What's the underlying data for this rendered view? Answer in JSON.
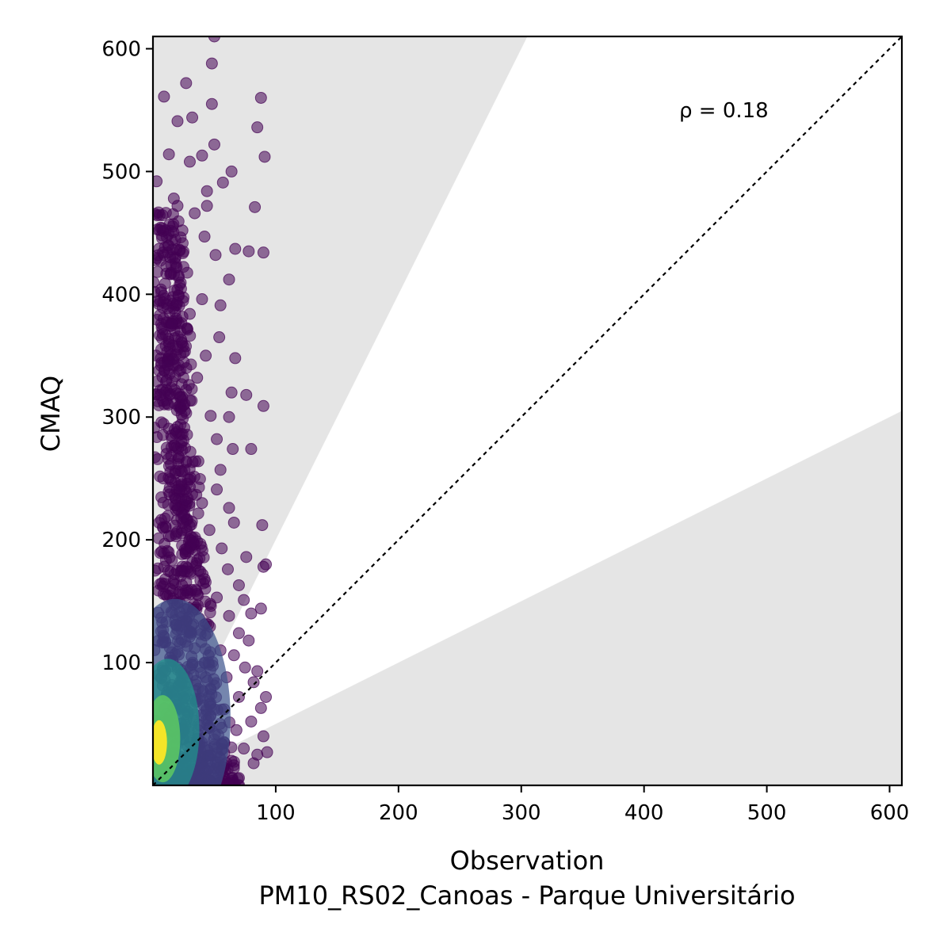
{
  "chart_data": {
    "type": "scatter",
    "title": "",
    "xlabel": "Observation",
    "xlabel_sub": "PM10_RS02_Canoas - Parque Universitário",
    "ylabel": "CMAQ",
    "xlim": [
      0,
      610
    ],
    "ylim": [
      0,
      610
    ],
    "x_ticks": [
      100,
      200,
      300,
      400,
      500,
      600
    ],
    "y_ticks": [
      100,
      200,
      300,
      400,
      500,
      600
    ],
    "annotation": "ρ = 0.18",
    "reference_line": "1:1 dashed",
    "shaded_band": "outside factor-of-2 band (y > 2x and y < x/2)",
    "grid": false,
    "colormap": "viridis (point density)",
    "point_alpha": 0.6,
    "colors": {
      "band": "#e5e5e5",
      "low_density": "#440154",
      "high_density": "#fde725"
    },
    "points_sample": [
      [
        50,
        610
      ],
      [
        48,
        588
      ],
      [
        27,
        572
      ],
      [
        9,
        561
      ],
      [
        88,
        560
      ],
      [
        48,
        555
      ],
      [
        32,
        544
      ],
      [
        20,
        541
      ],
      [
        85,
        536
      ],
      [
        13,
        514
      ],
      [
        40,
        513
      ],
      [
        91,
        512
      ],
      [
        30,
        508
      ],
      [
        50,
        522
      ],
      [
        64,
        500
      ],
      [
        3,
        492
      ],
      [
        57,
        491
      ],
      [
        44,
        484
      ],
      [
        17,
        478
      ],
      [
        20,
        472
      ],
      [
        44,
        472
      ],
      [
        83,
        471
      ],
      [
        34,
        466
      ],
      [
        24,
        452
      ],
      [
        42,
        447
      ],
      [
        5,
        437
      ],
      [
        67,
        437
      ],
      [
        78,
        435
      ],
      [
        90,
        434
      ],
      [
        14,
        430
      ],
      [
        51,
        432
      ],
      [
        62,
        412
      ],
      [
        40,
        396
      ],
      [
        55,
        391
      ],
      [
        30,
        384
      ],
      [
        54,
        365
      ],
      [
        23,
        363
      ],
      [
        43,
        350
      ],
      [
        67,
        348
      ],
      [
        12,
        342
      ],
      [
        36,
        332
      ],
      [
        64,
        320
      ],
      [
        76,
        318
      ],
      [
        6,
        318
      ],
      [
        90,
        309
      ],
      [
        26,
        305
      ],
      [
        47,
        301
      ],
      [
        62,
        300
      ],
      [
        20,
        292
      ],
      [
        52,
        282
      ],
      [
        65,
        274
      ],
      [
        80,
        274
      ],
      [
        11,
        270
      ],
      [
        37,
        264
      ],
      [
        55,
        257
      ],
      [
        30,
        249
      ],
      [
        52,
        241
      ],
      [
        18,
        234
      ],
      [
        40,
        230
      ],
      [
        62,
        226
      ],
      [
        25,
        219
      ],
      [
        66,
        214
      ],
      [
        89,
        212
      ],
      [
        46,
        208
      ],
      [
        13,
        203
      ],
      [
        33,
        198
      ],
      [
        56,
        193
      ],
      [
        76,
        186
      ],
      [
        92,
        180
      ],
      [
        90,
        178
      ],
      [
        23,
        174
      ],
      [
        61,
        176
      ],
      [
        42,
        168
      ],
      [
        70,
        163
      ],
      [
        14,
        160
      ],
      [
        36,
        156
      ],
      [
        52,
        153
      ],
      [
        74,
        151
      ],
      [
        88,
        144
      ],
      [
        80,
        140
      ],
      [
        22,
        141
      ],
      [
        62,
        138
      ],
      [
        45,
        131
      ],
      [
        70,
        124
      ],
      [
        30,
        121
      ],
      [
        78,
        118
      ],
      [
        55,
        110
      ],
      [
        66,
        106
      ],
      [
        14,
        104
      ],
      [
        42,
        100
      ],
      [
        75,
        96
      ],
      [
        85,
        93
      ],
      [
        33,
        90
      ],
      [
        60,
        88
      ],
      [
        82,
        84
      ],
      [
        21,
        81
      ],
      [
        47,
        78
      ],
      [
        92,
        72
      ],
      [
        70,
        72
      ],
      [
        35,
        68
      ],
      [
        88,
        63
      ],
      [
        58,
        62
      ],
      [
        26,
        58
      ],
      [
        80,
        52
      ],
      [
        46,
        48
      ],
      [
        68,
        45
      ],
      [
        16,
        44
      ],
      [
        90,
        40
      ],
      [
        36,
        38
      ],
      [
        56,
        34
      ],
      [
        74,
        30
      ],
      [
        93,
        27
      ],
      [
        85,
        25
      ],
      [
        45,
        24
      ],
      [
        26,
        22
      ],
      [
        64,
        20
      ],
      [
        82,
        18
      ],
      [
        38,
        14
      ],
      [
        55,
        10
      ],
      [
        20,
        8
      ],
      [
        70,
        6
      ],
      [
        30,
        4
      ]
    ],
    "density_cluster": {
      "x_range": [
        0,
        30
      ],
      "y_range": [
        0,
        100
      ],
      "peak": [
        5,
        35
      ]
    }
  }
}
